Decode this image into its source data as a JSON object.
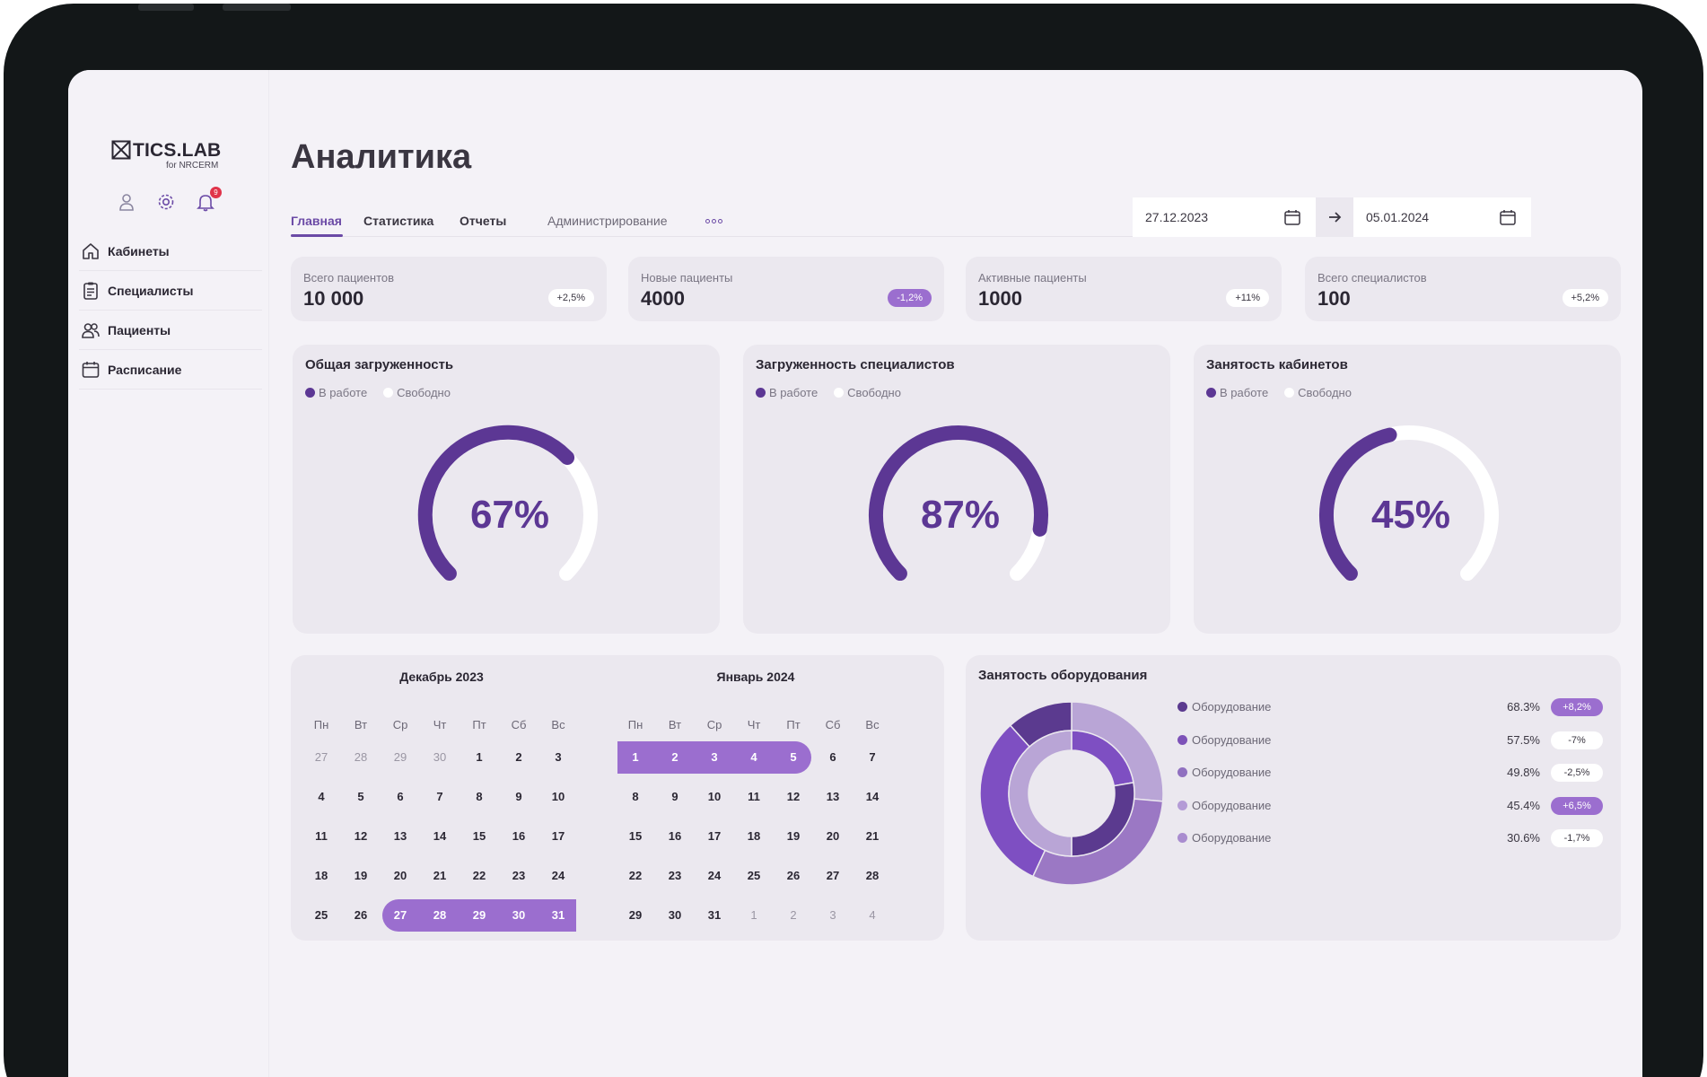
{
  "brand": {
    "name": "TICS.LAB",
    "sub": "for NRCERM"
  },
  "notifications": {
    "count": "9"
  },
  "sidebar": {
    "items": [
      {
        "label": "Кабинеты",
        "icon": "home-icon"
      },
      {
        "label": "Специалисты",
        "icon": "clipboard-icon"
      },
      {
        "label": "Пациенты",
        "icon": "users-icon"
      },
      {
        "label": "Расписание",
        "icon": "calendar-icon"
      }
    ]
  },
  "page": {
    "title": "Аналитика"
  },
  "tabs": [
    {
      "label": "Главная"
    },
    {
      "label": "Статистика"
    },
    {
      "label": "Отчеты"
    },
    {
      "label": "Администрирование"
    }
  ],
  "dates": {
    "from": "27.12.2023",
    "to": "05.01.2024"
  },
  "stats": [
    {
      "label": "Всего пациентов",
      "value": "10 000",
      "delta": "+2,5%"
    },
    {
      "label": "Новые пациенты",
      "value": "4000",
      "delta": "-1,2%"
    },
    {
      "label": "Активные пациенты",
      "value": "1000",
      "delta": "+11%"
    },
    {
      "label": "Всего специалистов",
      "value": "100",
      "delta": "+5,2%"
    }
  ],
  "gauges": [
    {
      "title": "Общая загруженность",
      "busy": "В работе",
      "free": "Свободно",
      "value_label": "67%",
      "fraction": 0.67
    },
    {
      "title": "Загруженность специалистов",
      "busy": "В работе",
      "free": "Свободно",
      "value_label": "87%",
      "fraction": 0.87
    },
    {
      "title": "Занятость кабинетов",
      "busy": "В работе",
      "free": "Свободно",
      "value_label": "45%",
      "fraction": 0.45
    }
  ],
  "calendar": {
    "weekdays": [
      "Пн",
      "Вт",
      "Ср",
      "Чт",
      "Пт",
      "Сб",
      "Вс"
    ],
    "months": [
      {
        "title": "Декабрь 2023",
        "weeks": [
          [
            "27",
            "28",
            "29",
            "30",
            "1",
            "2",
            "3"
          ],
          [
            "4",
            "5",
            "6",
            "7",
            "8",
            "9",
            "10"
          ],
          [
            "11",
            "12",
            "13",
            "14",
            "15",
            "16",
            "17"
          ],
          [
            "18",
            "19",
            "20",
            "21",
            "22",
            "23",
            "24"
          ],
          [
            "25",
            "26",
            "27",
            "28",
            "29",
            "30",
            "31"
          ]
        ]
      },
      {
        "title": "Январь 2024",
        "weeks": [
          [
            "1",
            "2",
            "3",
            "4",
            "5",
            "6",
            "7"
          ],
          [
            "8",
            "9",
            "10",
            "11",
            "12",
            "13",
            "14"
          ],
          [
            "15",
            "16",
            "17",
            "18",
            "19",
            "20",
            "21"
          ],
          [
            "22",
            "23",
            "24",
            "25",
            "26",
            "27",
            "28"
          ],
          [
            "29",
            "30",
            "31",
            "1",
            "2",
            "3",
            "4"
          ]
        ]
      }
    ]
  },
  "equipment": {
    "title": "Занятость оборудования",
    "items": [
      {
        "name": "Оборудование",
        "pct": "68.3%",
        "change": "+8,2%",
        "color": "#5b3a8f"
      },
      {
        "name": "Оборудование",
        "pct": "57.5%",
        "change": "-7%",
        "color": "#7d52b8"
      },
      {
        "name": "Оборудование",
        "pct": "49.8%",
        "change": "-2,5%",
        "color": "#9070c0"
      },
      {
        "name": "Оборудование",
        "pct": "45.4%",
        "change": "+6,5%",
        "color": "#b49bd6"
      },
      {
        "name": "Оборудование",
        "pct": "30.6%",
        "change": "-1,7%",
        "color": "#a98ccf"
      }
    ]
  },
  "colors": {
    "accent": "#6b4aa6",
    "gauge": "#5c3794",
    "highlight": "#9b6ecf"
  }
}
